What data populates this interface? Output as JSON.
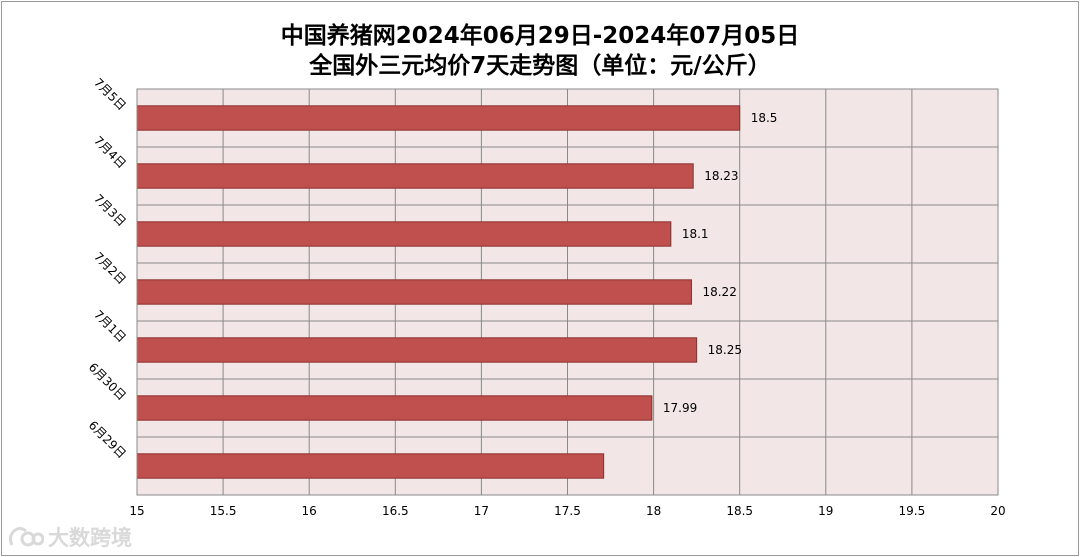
{
  "chart_data": {
    "type": "bar",
    "orientation": "horizontal",
    "title": "中国养猪网2024年06月29日-2024年07月05日",
    "subtitle": "全国外三元均价7天走势图（单位：元/公斤）",
    "categories": [
      "7月5日",
      "7月4日",
      "7月3日",
      "7月2日",
      "7月1日",
      "6月30日",
      "6月29日"
    ],
    "values": [
      18.5,
      18.23,
      18.1,
      18.22,
      18.25,
      17.99,
      17.71
    ],
    "data_labels": [
      "18.5",
      "18.23",
      "18.1",
      "18.22",
      "18.25",
      "17.99",
      ""
    ],
    "xlim": [
      15,
      20
    ],
    "xticks": [
      "15",
      "15.5",
      "16",
      "16.5",
      "17",
      "17.5",
      "18",
      "18.5",
      "19",
      "19.5",
      "20"
    ],
    "grid": true,
    "colors": {
      "bar": "#c0504d",
      "bar_edge": "#8c2e2b",
      "plot_bg": "#f2e6e6",
      "grid": "#8a8a8a"
    }
  },
  "watermark": {
    "text": "大数跨境",
    "icon": "dashuju-logo-icon"
  }
}
